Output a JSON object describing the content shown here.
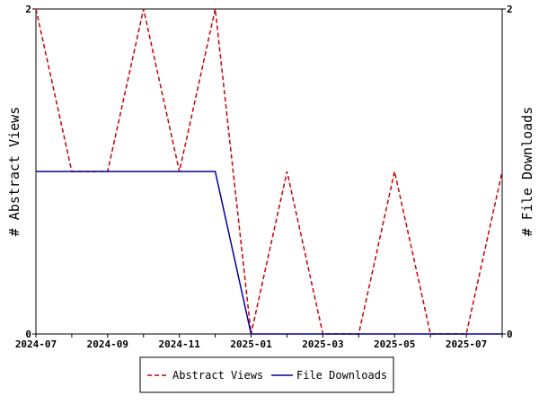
{
  "chart_data": {
    "type": "line",
    "title": "",
    "xlabel": "",
    "ylabel_left": "# Abstract Views",
    "ylabel_right": "# File Downloads",
    "x": [
      "2024-07",
      "2024-08",
      "2024-09",
      "2024-10",
      "2024-11",
      "2024-12",
      "2025-01",
      "2025-02",
      "2025-03",
      "2025-04",
      "2025-05",
      "2025-06",
      "2025-07",
      "2025-08"
    ],
    "x_tick_labels": [
      "2024-07",
      "2024-09",
      "2024-11",
      "2025-01",
      "2025-03",
      "2025-05",
      "2025-07"
    ],
    "ylim_left": [
      0,
      2
    ],
    "ylim_right": [
      0,
      2
    ],
    "y_tick_labels_left": [
      "0",
      "2"
    ],
    "y_tick_labels_right": [
      "0",
      "2"
    ],
    "grid": false,
    "legend_position": "bottom-center",
    "series": [
      {
        "name": "Abstract Views",
        "axis": "left",
        "color": "#cc0000",
        "dashed": true,
        "values": [
          2,
          1,
          1,
          2,
          1,
          2,
          0,
          1,
          0,
          0,
          1,
          0,
          0,
          1
        ]
      },
      {
        "name": "File Downloads",
        "axis": "right",
        "color": "#000099",
        "dashed": false,
        "values": [
          1,
          1,
          1,
          1,
          1,
          1,
          0,
          0,
          0,
          0,
          0,
          0,
          0,
          0
        ]
      }
    ]
  }
}
